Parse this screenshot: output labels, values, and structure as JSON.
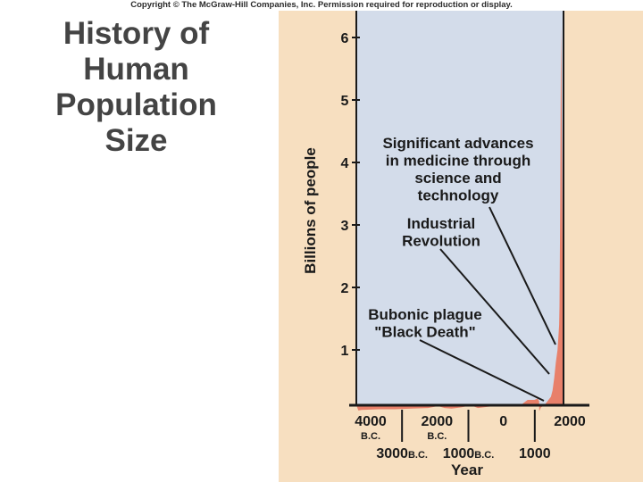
{
  "copyright": "Copyright © The McGraw-Hill Companies, Inc. Permission required for reproduction or display.",
  "title_lines": [
    "History of",
    "Human",
    "Population",
    "Size"
  ],
  "chart_data": {
    "type": "area",
    "title": "History of Human Population Size",
    "xlabel": "Year",
    "ylabel": "Billions of people",
    "xlim": [
      -4100,
      2100
    ],
    "ylim": [
      0,
      6.4
    ],
    "y_ticks": [
      1,
      2,
      3,
      4,
      5,
      6
    ],
    "x_ticks_major": [
      {
        "x": -4000,
        "label": "4000",
        "sub": "B.C."
      },
      {
        "x": -2000,
        "label": "2000",
        "sub": "B.C."
      },
      {
        "x": 0,
        "label": "0",
        "sub": ""
      },
      {
        "x": 2000,
        "label": "2000",
        "sub": ""
      }
    ],
    "x_ticks_minor": [
      {
        "x": -3000,
        "label": "3000",
        "sub": "B.C."
      },
      {
        "x": -1000,
        "label": "1000",
        "sub": "B.C."
      },
      {
        "x": 1000,
        "label": "1000",
        "sub": ""
      }
    ],
    "series": [
      {
        "name": "",
        "x": [
          -4100,
          -4000,
          -3500,
          -3000,
          -2500,
          -2000,
          -1700,
          -1500,
          -1300,
          -1000,
          -700,
          -500,
          -200,
          0,
          200,
          400,
          600,
          800,
          1000,
          1200,
          1300,
          1347,
          1350,
          1400,
          1500,
          1600,
          1700,
          1750,
          1800,
          1850,
          1900,
          1950,
          1960,
          1970,
          1980,
          1990,
          2000,
          2010
        ],
        "y": [
          0.03,
          0.04,
          0.05,
          0.05,
          0.06,
          0.07,
          0.1,
          0.07,
          0.06,
          0.08,
          0.11,
          0.07,
          0.09,
          0.1,
          0.11,
          0.1,
          0.1,
          0.12,
          0.2,
          0.2,
          0.22,
          0.18,
          0.02,
          0.08,
          0.11,
          0.18,
          0.25,
          0.35,
          0.55,
          0.8,
          1.0,
          1.4,
          1.7,
          2.5,
          3.3,
          4.2,
          5.5,
          6.2
        ]
      }
    ],
    "annotations": [
      {
        "lines": [
          "Significant advances",
          "in medicine through",
          "science and",
          "technology"
        ],
        "target": [
          1950,
          1.6
        ]
      },
      {
        "lines": [
          "Industrial",
          "Revolution"
        ],
        "target": [
          1800,
          0.6
        ]
      },
      {
        "lines": [
          "Bubonic plague",
          "\"Black Death\""
        ],
        "target": [
          1347,
          0.14
        ]
      }
    ],
    "colors": {
      "plot_bg": "#d3dcea",
      "outer_bg": "#f7dfc0",
      "fill": "#e8806a",
      "frame": "#1a1a1a",
      "ink": "#1a1a1a"
    },
    "grid": false,
    "legend": "none"
  }
}
